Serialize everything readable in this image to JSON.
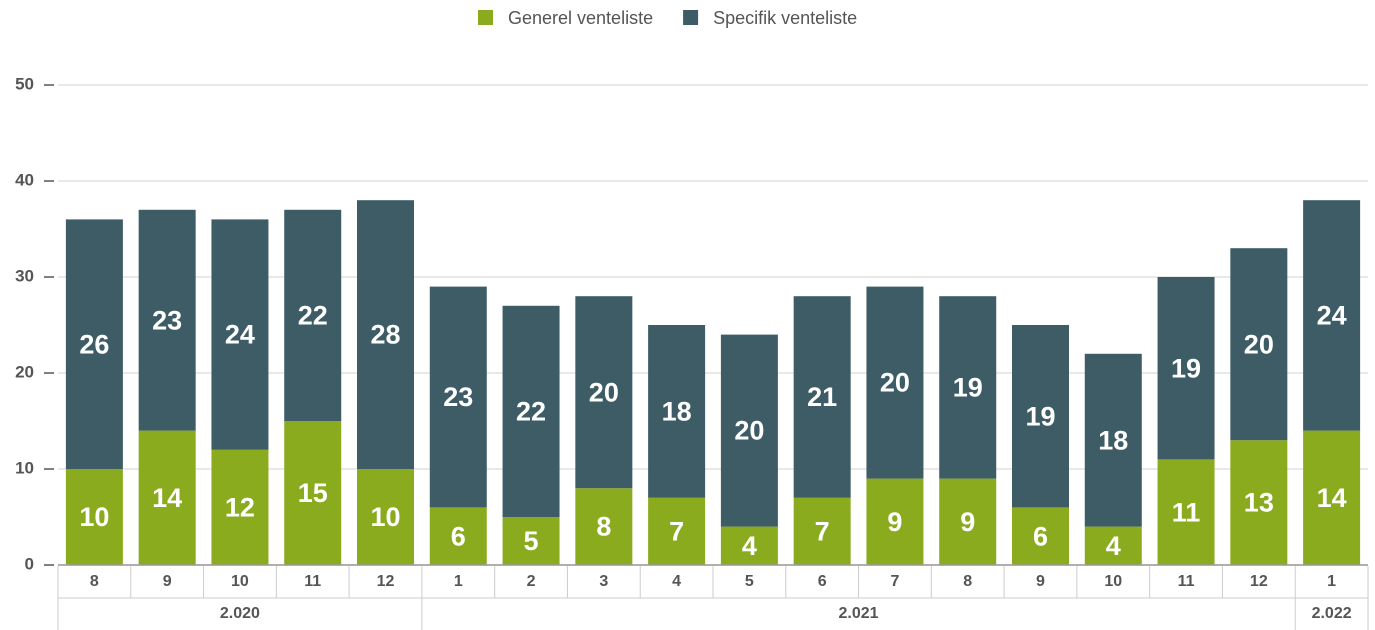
{
  "chart_data": {
    "type": "stacked_bar",
    "groups": [
      {
        "name": "2.020",
        "categories": [
          "8",
          "9",
          "10",
          "11",
          "12"
        ]
      },
      {
        "name": "2.021",
        "categories": [
          "1",
          "2",
          "3",
          "4",
          "5",
          "6",
          "7",
          "8",
          "9",
          "10",
          "11",
          "12"
        ]
      },
      {
        "name": "2.022",
        "categories": [
          "1"
        ]
      }
    ],
    "series": [
      {
        "name": "Generel venteliste",
        "color": "#8aab1e",
        "values": [
          10,
          14,
          12,
          15,
          10,
          6,
          5,
          8,
          7,
          4,
          7,
          9,
          9,
          6,
          4,
          11,
          13,
          14
        ]
      },
      {
        "name": "Specifik venteliste",
        "color": "#3e5c66",
        "values": [
          26,
          23,
          24,
          22,
          28,
          23,
          22,
          20,
          18,
          20,
          21,
          20,
          19,
          19,
          18,
          19,
          20,
          24
        ]
      }
    ],
    "ylim": [
      0,
      50
    ],
    "yticks": [
      0,
      10,
      20,
      30,
      40,
      50
    ],
    "grid": true,
    "legend": "top"
  }
}
